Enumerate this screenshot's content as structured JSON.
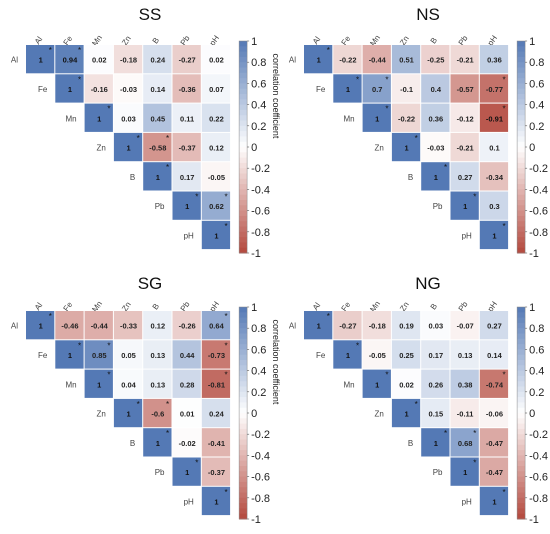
{
  "chart_data": [
    {
      "type": "heatmap",
      "title": "SS",
      "variables": [
        "Al",
        "Fe",
        "Mn",
        "Zn",
        "B",
        "Pb",
        "pH"
      ],
      "cells": [
        {
          "row": "Al",
          "col": "Al",
          "value": 1,
          "sig": true
        },
        {
          "row": "Al",
          "col": "Fe",
          "value": 0.94,
          "sig": true
        },
        {
          "row": "Al",
          "col": "Mn",
          "value": 0.02,
          "sig": false
        },
        {
          "row": "Al",
          "col": "Zn",
          "value": -0.18,
          "sig": false
        },
        {
          "row": "Al",
          "col": "B",
          "value": 0.24,
          "sig": false
        },
        {
          "row": "Al",
          "col": "Pb",
          "value": -0.27,
          "sig": false
        },
        {
          "row": "Al",
          "col": "pH",
          "value": 0.02,
          "sig": false
        },
        {
          "row": "Fe",
          "col": "Fe",
          "value": 1,
          "sig": true
        },
        {
          "row": "Fe",
          "col": "Mn",
          "value": -0.16,
          "sig": false
        },
        {
          "row": "Fe",
          "col": "Zn",
          "value": -0.03,
          "sig": false
        },
        {
          "row": "Fe",
          "col": "B",
          "value": 0.14,
          "sig": false
        },
        {
          "row": "Fe",
          "col": "Pb",
          "value": -0.36,
          "sig": false
        },
        {
          "row": "Fe",
          "col": "pH",
          "value": 0.07,
          "sig": false
        },
        {
          "row": "Mn",
          "col": "Mn",
          "value": 1,
          "sig": true
        },
        {
          "row": "Mn",
          "col": "Zn",
          "value": 0.03,
          "sig": false
        },
        {
          "row": "Mn",
          "col": "B",
          "value": 0.45,
          "sig": false
        },
        {
          "row": "Mn",
          "col": "Pb",
          "value": 0.11,
          "sig": false
        },
        {
          "row": "Mn",
          "col": "pH",
          "value": 0.22,
          "sig": false
        },
        {
          "row": "Zn",
          "col": "Zn",
          "value": 1,
          "sig": true
        },
        {
          "row": "Zn",
          "col": "B",
          "value": -0.58,
          "sig": true
        },
        {
          "row": "Zn",
          "col": "Pb",
          "value": -0.37,
          "sig": false
        },
        {
          "row": "Zn",
          "col": "pH",
          "value": 0.12,
          "sig": false
        },
        {
          "row": "B",
          "col": "B",
          "value": 1,
          "sig": true
        },
        {
          "row": "B",
          "col": "Pb",
          "value": 0.17,
          "sig": false
        },
        {
          "row": "B",
          "col": "pH",
          "value": -0.05,
          "sig": false
        },
        {
          "row": "Pb",
          "col": "Pb",
          "value": 1,
          "sig": true
        },
        {
          "row": "Pb",
          "col": "pH",
          "value": 0.62,
          "sig": true
        },
        {
          "row": "pH",
          "col": "pH",
          "value": 1,
          "sig": true
        }
      ],
      "colorbar": {
        "label": "correlation coefficient",
        "ticks": [
          "1",
          "0.8",
          "0.6",
          "0.4",
          "0.2",
          "0",
          "-0.2",
          "-0.4",
          "-0.6",
          "-0.8",
          "-1"
        ],
        "range": [
          -1,
          1
        ]
      }
    },
    {
      "type": "heatmap",
      "title": "NS",
      "variables": [
        "Al",
        "Fe",
        "Mn",
        "Zn",
        "B",
        "Pb",
        "pH"
      ],
      "cells": [
        {
          "row": "Al",
          "col": "Al",
          "value": 1,
          "sig": true
        },
        {
          "row": "Al",
          "col": "Fe",
          "value": -0.22,
          "sig": false
        },
        {
          "row": "Al",
          "col": "Mn",
          "value": -0.44,
          "sig": false
        },
        {
          "row": "Al",
          "col": "Zn",
          "value": 0.51,
          "sig": false
        },
        {
          "row": "Al",
          "col": "B",
          "value": -0.25,
          "sig": false
        },
        {
          "row": "Al",
          "col": "Pb",
          "value": -0.21,
          "sig": false
        },
        {
          "row": "Al",
          "col": "pH",
          "value": 0.36,
          "sig": false
        },
        {
          "row": "Fe",
          "col": "Fe",
          "value": 1,
          "sig": true
        },
        {
          "row": "Fe",
          "col": "Mn",
          "value": 0.7,
          "sig": true
        },
        {
          "row": "Fe",
          "col": "Zn",
          "value": -0.1,
          "sig": false
        },
        {
          "row": "Fe",
          "col": "B",
          "value": 0.4,
          "sig": false
        },
        {
          "row": "Fe",
          "col": "Pb",
          "value": -0.57,
          "sig": false
        },
        {
          "row": "Fe",
          "col": "pH",
          "value": -0.77,
          "sig": true
        },
        {
          "row": "Mn",
          "col": "Mn",
          "value": 1,
          "sig": true
        },
        {
          "row": "Mn",
          "col": "Zn",
          "value": -0.22,
          "sig": false
        },
        {
          "row": "Mn",
          "col": "B",
          "value": 0.36,
          "sig": false
        },
        {
          "row": "Mn",
          "col": "Pb",
          "value": -0.12,
          "sig": false
        },
        {
          "row": "Mn",
          "col": "pH",
          "value": -0.91,
          "sig": true
        },
        {
          "row": "Zn",
          "col": "Zn",
          "value": 1,
          "sig": true
        },
        {
          "row": "Zn",
          "col": "B",
          "value": -0.03,
          "sig": false
        },
        {
          "row": "Zn",
          "col": "Pb",
          "value": -0.21,
          "sig": false
        },
        {
          "row": "Zn",
          "col": "pH",
          "value": 0.1,
          "sig": false
        },
        {
          "row": "B",
          "col": "B",
          "value": 1,
          "sig": true
        },
        {
          "row": "B",
          "col": "Pb",
          "value": 0.27,
          "sig": false
        },
        {
          "row": "B",
          "col": "pH",
          "value": -0.34,
          "sig": false
        },
        {
          "row": "Pb",
          "col": "Pb",
          "value": 1,
          "sig": true
        },
        {
          "row": "Pb",
          "col": "pH",
          "value": 0.3,
          "sig": false
        },
        {
          "row": "pH",
          "col": "pH",
          "value": 1,
          "sig": true
        }
      ],
      "colorbar": {
        "label": "correlation coefficient",
        "ticks": [
          "1",
          "0.8",
          "0.6",
          "0.4",
          "0.2",
          "0",
          "-0.2",
          "-0.4",
          "-0.6",
          "-0.8",
          "-1"
        ],
        "range": [
          -1,
          1
        ]
      }
    },
    {
      "type": "heatmap",
      "title": "SG",
      "variables": [
        "Al",
        "Fe",
        "Mn",
        "Zn",
        "B",
        "Pb",
        "pH"
      ],
      "cells": [
        {
          "row": "Al",
          "col": "Al",
          "value": 1,
          "sig": true
        },
        {
          "row": "Al",
          "col": "Fe",
          "value": -0.46,
          "sig": false
        },
        {
          "row": "Al",
          "col": "Mn",
          "value": -0.44,
          "sig": false
        },
        {
          "row": "Al",
          "col": "Zn",
          "value": -0.33,
          "sig": false
        },
        {
          "row": "Al",
          "col": "B",
          "value": 0.12,
          "sig": false
        },
        {
          "row": "Al",
          "col": "Pb",
          "value": -0.26,
          "sig": false
        },
        {
          "row": "Al",
          "col": "pH",
          "value": 0.64,
          "sig": true
        },
        {
          "row": "Fe",
          "col": "Fe",
          "value": 1,
          "sig": true
        },
        {
          "row": "Fe",
          "col": "Mn",
          "value": 0.85,
          "sig": true
        },
        {
          "row": "Fe",
          "col": "Zn",
          "value": 0.05,
          "sig": false
        },
        {
          "row": "Fe",
          "col": "B",
          "value": 0.13,
          "sig": false
        },
        {
          "row": "Fe",
          "col": "Pb",
          "value": 0.44,
          "sig": false
        },
        {
          "row": "Fe",
          "col": "pH",
          "value": -0.73,
          "sig": true
        },
        {
          "row": "Mn",
          "col": "Mn",
          "value": 1,
          "sig": true
        },
        {
          "row": "Mn",
          "col": "Zn",
          "value": 0.04,
          "sig": false
        },
        {
          "row": "Mn",
          "col": "B",
          "value": 0.13,
          "sig": false
        },
        {
          "row": "Mn",
          "col": "Pb",
          "value": 0.28,
          "sig": false
        },
        {
          "row": "Mn",
          "col": "pH",
          "value": -0.81,
          "sig": true
        },
        {
          "row": "Zn",
          "col": "Zn",
          "value": 1,
          "sig": true
        },
        {
          "row": "Zn",
          "col": "B",
          "value": -0.6,
          "sig": true
        },
        {
          "row": "Zn",
          "col": "Pb",
          "value": 0.01,
          "sig": false
        },
        {
          "row": "Zn",
          "col": "pH",
          "value": 0.24,
          "sig": false
        },
        {
          "row": "B",
          "col": "B",
          "value": 1,
          "sig": true
        },
        {
          "row": "B",
          "col": "Pb",
          "value": -0.02,
          "sig": false
        },
        {
          "row": "B",
          "col": "pH",
          "value": -0.41,
          "sig": false
        },
        {
          "row": "Pb",
          "col": "Pb",
          "value": 1,
          "sig": true
        },
        {
          "row": "Pb",
          "col": "pH",
          "value": -0.37,
          "sig": false
        },
        {
          "row": "pH",
          "col": "pH",
          "value": 1,
          "sig": true
        }
      ],
      "colorbar": {
        "label": "correlation coefficient",
        "ticks": [
          "1",
          "0.8",
          "0.6",
          "0.4",
          "0.2",
          "0",
          "-0.2",
          "-0.4",
          "-0.6",
          "-0.8",
          "-1"
        ],
        "range": [
          -1,
          1
        ]
      }
    },
    {
      "type": "heatmap",
      "title": "NG",
      "variables": [
        "Al",
        "Fe",
        "Mn",
        "Zn",
        "B",
        "Pb",
        "pH"
      ],
      "cells": [
        {
          "row": "Al",
          "col": "Al",
          "value": 1,
          "sig": true
        },
        {
          "row": "Al",
          "col": "Fe",
          "value": -0.27,
          "sig": false
        },
        {
          "row": "Al",
          "col": "Mn",
          "value": -0.18,
          "sig": false
        },
        {
          "row": "Al",
          "col": "Zn",
          "value": 0.19,
          "sig": false
        },
        {
          "row": "Al",
          "col": "B",
          "value": 0.03,
          "sig": false
        },
        {
          "row": "Al",
          "col": "Pb",
          "value": -0.07,
          "sig": false
        },
        {
          "row": "Al",
          "col": "pH",
          "value": 0.27,
          "sig": false
        },
        {
          "row": "Fe",
          "col": "Fe",
          "value": 1,
          "sig": true
        },
        {
          "row": "Fe",
          "col": "Mn",
          "value": -0.05,
          "sig": false
        },
        {
          "row": "Fe",
          "col": "Zn",
          "value": 0.25,
          "sig": false
        },
        {
          "row": "Fe",
          "col": "B",
          "value": 0.17,
          "sig": false
        },
        {
          "row": "Fe",
          "col": "Pb",
          "value": 0.13,
          "sig": false
        },
        {
          "row": "Fe",
          "col": "pH",
          "value": 0.14,
          "sig": false
        },
        {
          "row": "Mn",
          "col": "Mn",
          "value": 1,
          "sig": true
        },
        {
          "row": "Mn",
          "col": "Zn",
          "value": 0.02,
          "sig": false
        },
        {
          "row": "Mn",
          "col": "B",
          "value": 0.26,
          "sig": false
        },
        {
          "row": "Mn",
          "col": "Pb",
          "value": 0.38,
          "sig": false
        },
        {
          "row": "Mn",
          "col": "pH",
          "value": -0.74,
          "sig": true
        },
        {
          "row": "Zn",
          "col": "Zn",
          "value": 1,
          "sig": true
        },
        {
          "row": "Zn",
          "col": "B",
          "value": 0.15,
          "sig": false
        },
        {
          "row": "Zn",
          "col": "Pb",
          "value": -0.11,
          "sig": false
        },
        {
          "row": "Zn",
          "col": "pH",
          "value": -0.06,
          "sig": false
        },
        {
          "row": "B",
          "col": "B",
          "value": 1,
          "sig": true
        },
        {
          "row": "B",
          "col": "Pb",
          "value": 0.68,
          "sig": true
        },
        {
          "row": "B",
          "col": "pH",
          "value": -0.47,
          "sig": false
        },
        {
          "row": "Pb",
          "col": "Pb",
          "value": 1,
          "sig": true
        },
        {
          "row": "Pb",
          "col": "pH",
          "value": -0.47,
          "sig": false
        },
        {
          "row": "pH",
          "col": "pH",
          "value": 1,
          "sig": true
        }
      ],
      "colorbar": {
        "label": "correlation coefficient",
        "ticks": [
          "1",
          "0.8",
          "0.6",
          "0.4",
          "0.2",
          "0",
          "-0.2",
          "-0.4",
          "-0.6",
          "-0.8",
          "-1"
        ],
        "range": [
          -1,
          1
        ]
      }
    }
  ],
  "colors": {
    "positive": "#5479b5",
    "neutral": "#ffffff",
    "negative": "#b3483d",
    "text": "#222222"
  }
}
